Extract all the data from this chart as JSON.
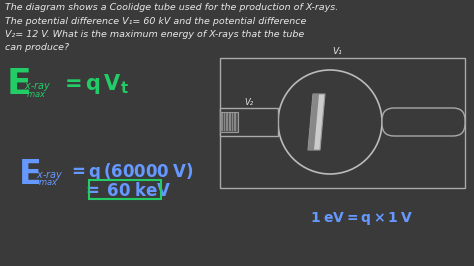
{
  "bg_color": "#2d2d2d",
  "text_color_black": "#e8e8e8",
  "text_color_green": "#22cc66",
  "text_color_blue": "#6699ff",
  "question_lines": [
    "The diagram shows a Coolidge tube used for the production of X-rays.",
    "The potential difference V₁= 60 kV and the potential difference",
    "V₂= 12 V. What is the maximum energy of X-rays that the tube",
    "can produce?"
  ],
  "tube_label_v1": "V₁",
  "tube_label_v2": "V₂",
  "aside_text": "1 eV = q×1 V"
}
